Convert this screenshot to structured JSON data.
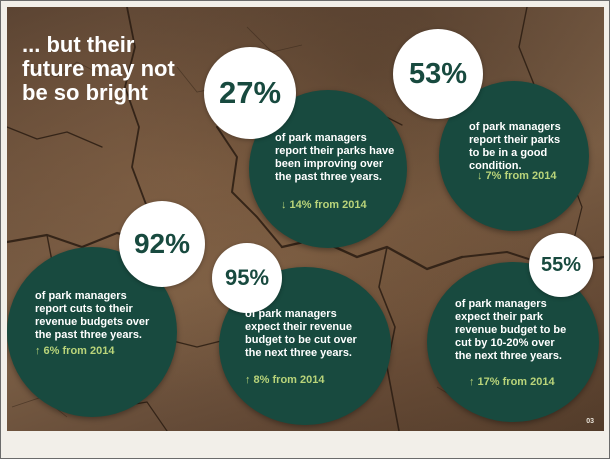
{
  "headline": {
    "line1": "... but their",
    "line2": "future may not",
    "line3": "be so bright"
  },
  "stats": [
    {
      "percent": "27%",
      "lines": [
        "of park managers",
        "report their parks have",
        "been improving over",
        "the past three years."
      ],
      "change": "↓ 14% from 2014"
    },
    {
      "percent": "53%",
      "lines": [
        "of park managers",
        "report their parks",
        "to be in a good",
        "condition."
      ],
      "change": "↓ 7% from 2014"
    },
    {
      "percent": "92%",
      "lines": [
        "of park managers",
        "report cuts to their",
        "revenue budgets over",
        "the past three years."
      ],
      "change": "↑ 6% from 2014"
    },
    {
      "percent": "95%",
      "lines": [
        "of park managers",
        "expect their revenue",
        "budget to be cut over",
        "the next three years."
      ],
      "change": "↑ 8% from 2014"
    },
    {
      "percent": "55%",
      "lines": [
        "of park managers",
        "expect their park",
        "revenue budget to be",
        "cut by 10-20% over",
        "the next three years."
      ],
      "change": "↑ 17% from 2014"
    }
  ],
  "page_number": "03",
  "colors": {
    "disc": "#184a3f",
    "badge": "#ffffff",
    "change_text": "#b9d47a"
  }
}
